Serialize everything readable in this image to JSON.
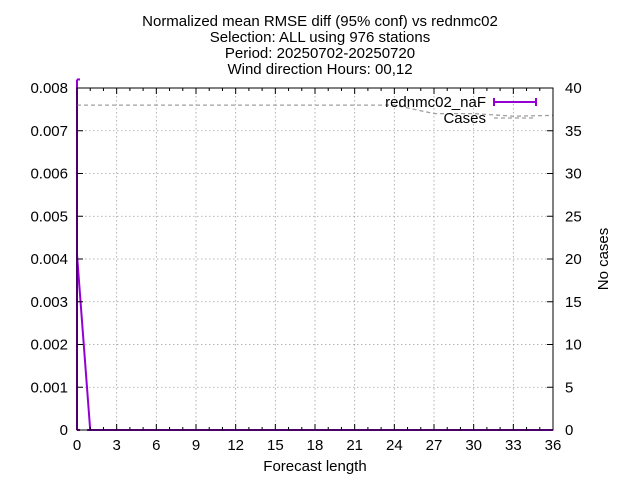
{
  "chart_data": {
    "type": "line",
    "title": [
      "Normalized mean RMSE diff (95% conf) vs rednmc02",
      "Selection: ALL using   976 stations",
      "Period: 20250702-20250720",
      "Wind direction   Hours: 00,12"
    ],
    "xlabel": "Forecast length",
    "ylabel": "",
    "y2label": "No cases",
    "xlim": [
      0,
      36
    ],
    "ylim": [
      0,
      0.008
    ],
    "y2lim": [
      0,
      40
    ],
    "grid": true,
    "legend_position": "top-right",
    "x_ticks": [
      "0",
      "3",
      "6",
      "9",
      "12",
      "15",
      "18",
      "21",
      "24",
      "27",
      "30",
      "33",
      "36"
    ],
    "y_ticks": [
      "0",
      "0.001",
      "0.002",
      "0.003",
      "0.004",
      "0.005",
      "0.006",
      "0.007",
      "0.008"
    ],
    "y2_ticks": [
      "0",
      "5",
      "10",
      "15",
      "20",
      "25",
      "30",
      "35",
      "40"
    ],
    "series": [
      {
        "name": "rednmc02_naF",
        "axis": "y",
        "color": "#9400d3",
        "style": "solid-errorbars",
        "x": [
          0,
          1,
          2,
          3,
          4,
          5,
          6,
          7,
          8,
          9,
          10,
          11,
          12,
          13,
          14,
          15,
          16,
          17,
          18,
          19,
          20,
          21,
          22,
          23,
          24,
          27,
          30,
          33,
          36
        ],
        "y": [
          0.0041,
          0,
          0,
          0,
          0,
          0,
          0,
          0,
          0,
          0,
          0,
          0,
          0,
          0,
          0,
          0,
          0,
          0,
          0,
          0,
          0,
          0,
          0,
          0,
          0,
          0,
          0,
          0,
          0
        ],
        "err_low": [
          0.0,
          0,
          0,
          0,
          0,
          0,
          0,
          0,
          0,
          0,
          0,
          0,
          0,
          0,
          0,
          0,
          0,
          0,
          0,
          0,
          0,
          0,
          0,
          0,
          0,
          0,
          0,
          0,
          0
        ],
        "err_high": [
          0.0082,
          0,
          0,
          0,
          0,
          0,
          0,
          0,
          0,
          0,
          0,
          0,
          0,
          0,
          0,
          0,
          0,
          0,
          0,
          0,
          0,
          0,
          0,
          0,
          0,
          0,
          0,
          0,
          0
        ]
      },
      {
        "name": "Cases",
        "axis": "y2",
        "color": "#a0a0a0",
        "style": "dashed",
        "x": [
          0,
          1,
          2,
          3,
          4,
          5,
          6,
          7,
          8,
          9,
          10,
          11,
          12,
          13,
          14,
          15,
          16,
          17,
          18,
          19,
          20,
          21,
          22,
          23,
          24,
          27,
          30,
          33,
          36
        ],
        "y": [
          38,
          38,
          38,
          38,
          38,
          38,
          38,
          38,
          38,
          38,
          38,
          38,
          38,
          38,
          38,
          38,
          38,
          38,
          38,
          38,
          38,
          38,
          38,
          38,
          38,
          37,
          37,
          36.7,
          36.8
        ]
      }
    ]
  }
}
